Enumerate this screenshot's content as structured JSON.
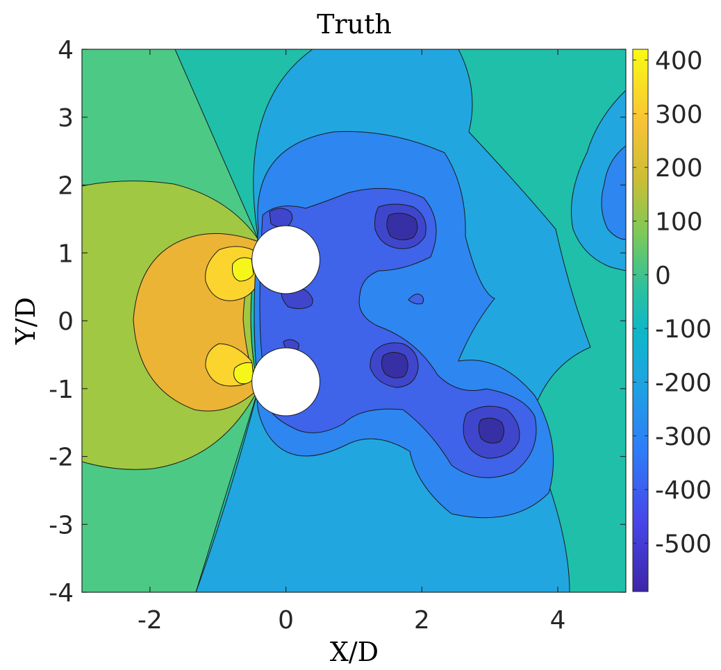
{
  "chart_data": {
    "type": "contour",
    "title": "Truth",
    "xlabel": "X/D",
    "ylabel": "Y/D",
    "xlim": [
      -3,
      5
    ],
    "ylim": [
      -4,
      4
    ],
    "x_ticks": [
      -2,
      0,
      2,
      4
    ],
    "x_tick_labels": [
      "-2",
      "0",
      "2",
      "4"
    ],
    "y_ticks": [
      4,
      3,
      2,
      1,
      0,
      -1,
      -2,
      -3,
      -4
    ],
    "y_tick_labels": [
      "4",
      "3",
      "2",
      "1",
      "0",
      "-1",
      "-2",
      "-3",
      "-4"
    ],
    "colorbar": {
      "range": [
        -590,
        420
      ],
      "ticks": [
        400,
        300,
        200,
        100,
        0,
        -100,
        -200,
        -300,
        -400,
        -500
      ],
      "tick_labels": [
        "400",
        "300",
        "200",
        "100",
        "0",
        "-100",
        "-200",
        "-300",
        "-400",
        "-500"
      ],
      "colormap": "parula"
    },
    "obstacles": [
      {
        "shape": "circle",
        "center": [
          0,
          0.9
        ],
        "diameter": 1
      },
      {
        "shape": "circle",
        "center": [
          0,
          -0.9
        ],
        "diameter": 1
      }
    ],
    "levels": [
      {
        "name": "-100",
        "color": "#1fbfaa"
      },
      {
        "name": "0",
        "color": "#4cc985"
      },
      {
        "name": "100",
        "color": "#a0c843"
      },
      {
        "name": "200",
        "color": "#ebb435"
      },
      {
        "name": "300",
        "color": "#fbd42e"
      },
      {
        "name": "400",
        "color": "#f6f718"
      },
      {
        "name": "-200",
        "color": "#22a6e0"
      },
      {
        "name": "-300",
        "color": "#2e86f0"
      },
      {
        "name": "-400",
        "color": "#3f63e9"
      },
      {
        "name": "-500",
        "color": "#3f46cc"
      },
      {
        "name": "-580",
        "color": "#3730a4"
      }
    ]
  }
}
